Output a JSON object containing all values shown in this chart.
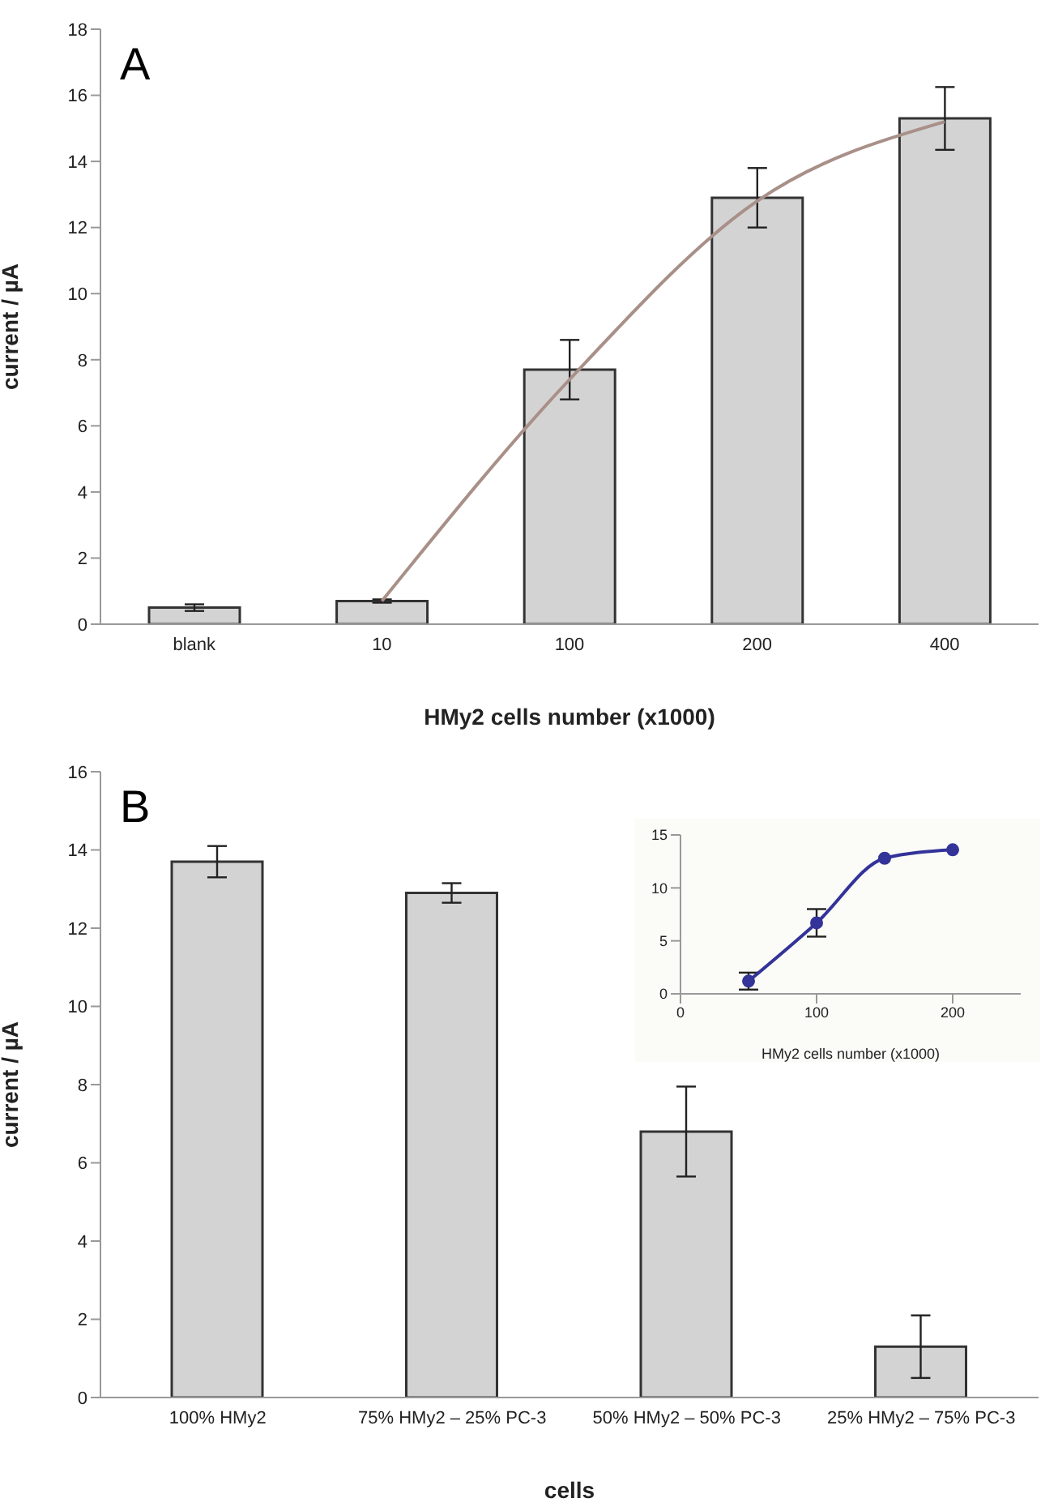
{
  "chart_data": [
    {
      "type": "bar",
      "title": "A",
      "xlabel": "HMy2 cells number (x1000)",
      "ylabel": "current / µA",
      "categories": [
        "blank",
        "10",
        "100",
        "200",
        "400"
      ],
      "ylim": [
        0,
        18
      ],
      "yticks": [
        0,
        2,
        4,
        6,
        8,
        10,
        12,
        14,
        16,
        18
      ],
      "series": [
        {
          "color": "#d3d3d3",
          "values": [
            0.5,
            0.7,
            7.7,
            12.9,
            15.3
          ],
          "errors": [
            0.1,
            0.05,
            0.9,
            0.9,
            0.95
          ]
        },
        {
          "type": "line",
          "color": "#a89088",
          "values": [
            null,
            0.7,
            7.4,
            12.8,
            15.2
          ]
        }
      ]
    },
    {
      "type": "bar",
      "title": "B",
      "xlabel": "cells",
      "ylabel": "current / µA",
      "categories": [
        "100% HMy2",
        "75% HMy2 – 25% PC-3",
        "50% HMy2 – 50% PC-3",
        "25% HMy2 – 75% PC-3"
      ],
      "ylim": [
        0,
        16
      ],
      "yticks": [
        0,
        2,
        4,
        6,
        8,
        10,
        12,
        14,
        16
      ],
      "series": [
        {
          "color": "#d3d3d3",
          "values": [
            13.7,
            12.9,
            6.8,
            1.3
          ],
          "errors": [
            0.4,
            0.25,
            1.15,
            0.8
          ]
        }
      ]
    },
    {
      "type": "line",
      "xlabel": "HMy2 cells number (x1000)",
      "x": [
        50,
        100,
        150,
        200
      ],
      "xlim": [
        0,
        250
      ],
      "xticks": [
        0,
        100,
        200
      ],
      "ylim": [
        0,
        15
      ],
      "yticks": [
        0,
        5,
        10,
        15
      ],
      "marker": "circle",
      "series": [
        {
          "color": "#333399",
          "values": [
            1.2,
            6.7,
            12.8,
            13.6
          ],
          "errors": [
            0.8,
            1.3,
            null,
            null
          ]
        }
      ]
    }
  ]
}
